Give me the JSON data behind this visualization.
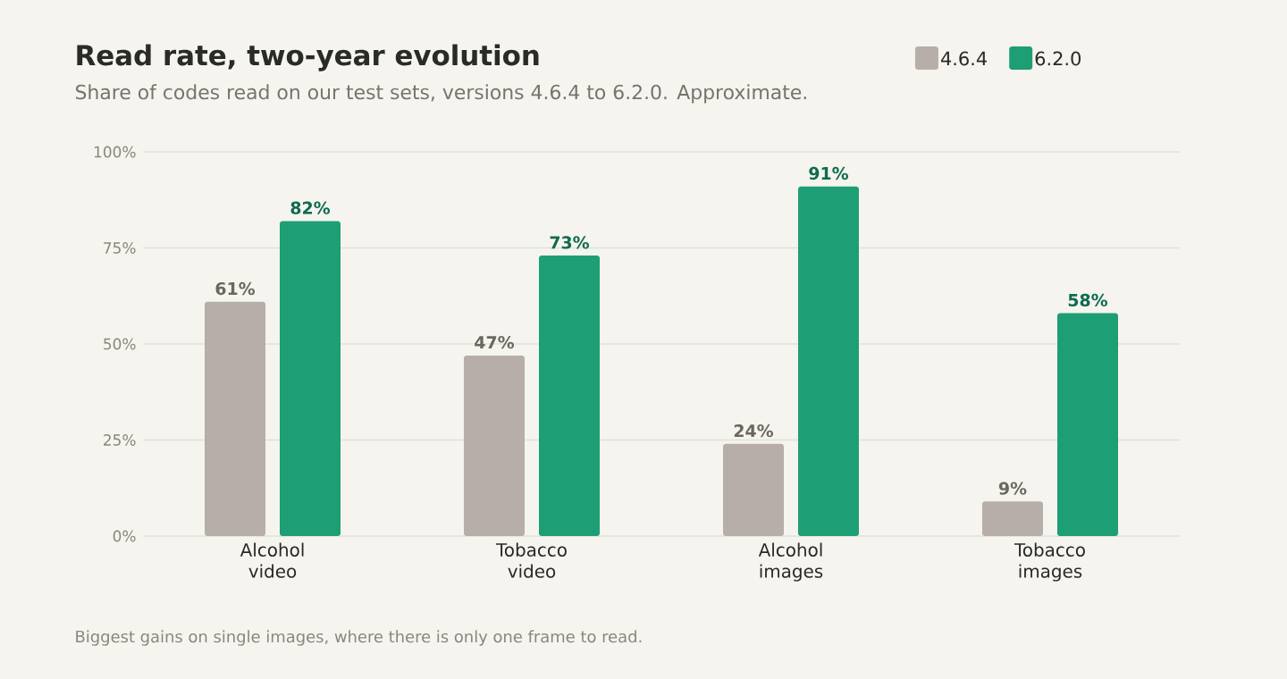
{
  "chart_data": {
    "type": "bar",
    "title": "Read rate, two-year evolution",
    "subtitle": "Share of codes read on our test sets, versions 4.6.4 to 6.2.0. Approximate.",
    "categories": [
      "Alcohol video",
      "Tobacco video",
      "Alcohol images",
      "Tobacco images"
    ],
    "series": [
      {
        "name": "4.6.4",
        "color": "#b7aea9",
        "values": [
          61,
          47,
          24,
          9
        ],
        "value_labels": [
          "61%",
          "47%",
          "24%",
          "9%"
        ]
      },
      {
        "name": "6.2.0",
        "color": "#1e9e75",
        "values": [
          82,
          73,
          91,
          58
        ],
        "value_labels": [
          "82%",
          "73%",
          "91%",
          "58%"
        ]
      }
    ],
    "ylim": [
      0,
      100
    ],
    "yticks": [
      {
        "value": 0,
        "label": "0%"
      },
      {
        "value": 25,
        "label": "25%"
      },
      {
        "value": 50,
        "label": "50%"
      },
      {
        "value": 75,
        "label": "75%"
      },
      {
        "value": 100,
        "label": "100%"
      }
    ],
    "grid": "y",
    "legend": "top right",
    "annotations": [
      "Biggest gains on single images, where there is only one frame to read."
    ]
  }
}
